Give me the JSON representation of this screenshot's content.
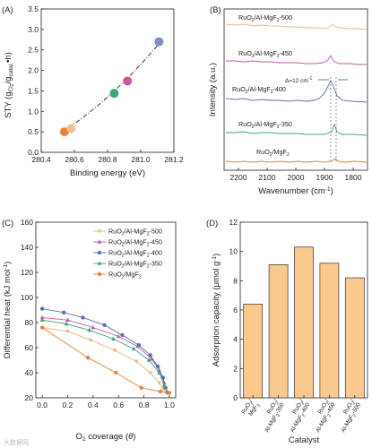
{
  "panels": {
    "a": "(A)",
    "b": "(B)",
    "c": "(C)",
    "d": "(D)"
  },
  "watermark": "大数据网",
  "chart_data": [
    {
      "id": "A",
      "type": "scatter",
      "xlabel": "Binding energy (eV)",
      "ylabel": "STY (gCl2/gcatal.•h)",
      "xlim": [
        280.4,
        281.2
      ],
      "ylim": [
        0.0,
        3.5
      ],
      "xticks": [
        "280.4",
        "280.6",
        "280.8",
        "281.0",
        "281.2"
      ],
      "yticks": [
        "0.0",
        "0.5",
        "1.0",
        "1.5",
        "2.0",
        "2.5",
        "3.0",
        "3.5"
      ],
      "points": [
        {
          "x": 280.54,
          "y": 0.5,
          "color": "#e8823a"
        },
        {
          "x": 280.58,
          "y": 0.58,
          "color": "#f2bf8c"
        },
        {
          "x": 280.84,
          "y": 1.44,
          "color": "#3fa57a"
        },
        {
          "x": 280.92,
          "y": 1.74,
          "color": "#c75aa4"
        },
        {
          "x": 281.11,
          "y": 2.7,
          "color": "#7c8fc7"
        }
      ],
      "trend": {
        "style": "dash-dot",
        "color": "#222222"
      }
    },
    {
      "id": "B",
      "type": "line",
      "xlabel": "Wavenumber (cm-1)",
      "ylabel": "Intensity (a.u.)",
      "xlim": [
        2250,
        1750
      ],
      "xticks": [
        2200,
        2100,
        2000,
        1900,
        1800
      ],
      "annotation": "Δ=12 cm-1",
      "series": [
        {
          "name": "RuO2/Al-MgF2-500",
          "color": "#e8b880"
        },
        {
          "name": "RuO2/Al-MgF2-450",
          "color": "#c75aa4"
        },
        {
          "name": "RuO2/Al-MgF2-400",
          "color": "#5b6fb5"
        },
        {
          "name": "RuO2/Al-MgF2-350",
          "color": "#3fa57a"
        },
        {
          "name": "RuO2/MgF2",
          "color": "#e8823a"
        }
      ]
    },
    {
      "id": "C",
      "type": "line",
      "xlabel": "O2 coverage (θ)",
      "ylabel": "Differential heat (kJ mol-1)",
      "xlim": [
        -0.05,
        1.05
      ],
      "ylim": [
        20,
        160
      ],
      "xticks": [
        "0.0",
        "0.2",
        "0.4",
        "0.6",
        "0.8",
        "1.0"
      ],
      "yticks": [
        "20",
        "40",
        "60",
        "80",
        "100",
        "120",
        "140",
        "160"
      ],
      "legend_position": "top-right",
      "series": [
        {
          "name": "RuO2/Al-MgF2-500",
          "color": "#e8b880",
          "marker": "triangle-down",
          "x": [
            0.0,
            0.2,
            0.38,
            0.57,
            0.74,
            0.85,
            0.92,
            0.95,
            0.98
          ],
          "y": [
            76,
            73,
            66,
            58,
            49,
            40,
            32,
            27,
            24
          ]
        },
        {
          "name": "RuO2/Al-MgF2-450",
          "color": "#c75aa4",
          "marker": "triangle-up",
          "x": [
            0.0,
            0.2,
            0.4,
            0.6,
            0.75,
            0.86,
            0.92,
            0.96,
            0.98
          ],
          "y": [
            84,
            82,
            76,
            69,
            61,
            51,
            42,
            32,
            25
          ]
        },
        {
          "name": "RuO2/Al-MgF2-400",
          "color": "#5b6fb5",
          "marker": "circle",
          "x": [
            0.0,
            0.17,
            0.32,
            0.49,
            0.63,
            0.76,
            0.85,
            0.91,
            0.95,
            0.97
          ],
          "y": [
            91,
            88,
            84,
            78,
            70,
            62,
            54,
            45,
            36,
            28
          ]
        },
        {
          "name": "RuO2/Al-MgF2-350",
          "color": "#3fa57a",
          "marker": "triangle-up",
          "x": [
            0.0,
            0.19,
            0.37,
            0.56,
            0.72,
            0.84,
            0.92,
            0.96,
            0.99
          ],
          "y": [
            82,
            79,
            74,
            67,
            59,
            50,
            40,
            30,
            24
          ]
        },
        {
          "name": "RuO2/MgF2",
          "color": "#e8823a",
          "marker": "circle",
          "x": [
            0.0,
            0.36,
            0.58,
            0.78,
            0.93,
            1.0
          ],
          "y": [
            76,
            52,
            40,
            28,
            25,
            24
          ]
        }
      ]
    },
    {
      "id": "D",
      "type": "bar",
      "xlabel": "Catalyst",
      "ylabel": "Adsorption capacity (μmol g-1)",
      "ylim": [
        0,
        12
      ],
      "yticks": [
        "0",
        "2",
        "4",
        "6",
        "8",
        "10",
        "12"
      ],
      "bar_color": "#fbc98e",
      "categories": [
        "RuO2/MgF2",
        "RuO2/Al-MgF2-350",
        "RuO2/Al-MgF2-400",
        "RuO2/Al-MgF2-450",
        "RuO2/Al-MgF2-500"
      ],
      "values": [
        6.4,
        9.1,
        10.3,
        9.2,
        8.2
      ]
    }
  ]
}
